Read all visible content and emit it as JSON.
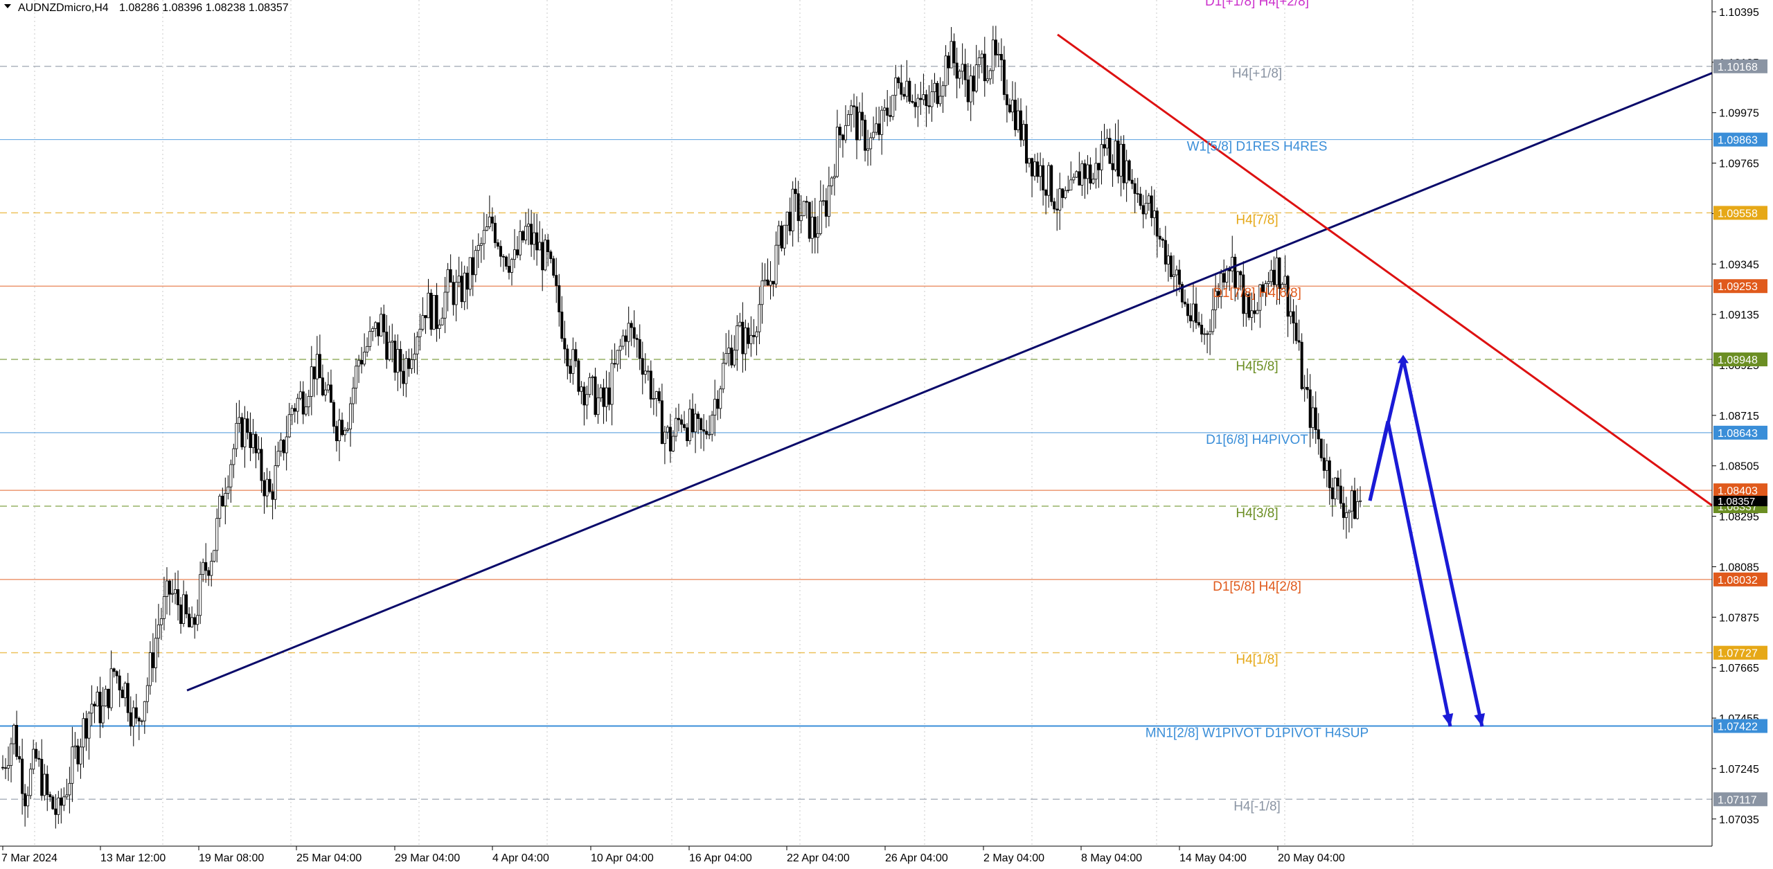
{
  "header": {
    "symbol_timeframe": "AUDNZDmicro,H4",
    "ohlc": "1.08286 1.08396 1.08238 1.08357"
  },
  "colors": {
    "background": "#ffffff",
    "candle": "#000000",
    "grid": "#c8c8c8",
    "trendline_up": "#0a0a6a",
    "trendline_down": "#dd1111",
    "arrows": "#1a1ad6",
    "price_tag_current": "#000000"
  },
  "chart_data": {
    "type": "candlestick",
    "title": "AUDNZDmicro,H4",
    "ylim": [
      1.069,
      1.1042
    ],
    "y_ticks": [
      "1.10395",
      "1.10185",
      "1.09975",
      "1.09765",
      "1.09555",
      "1.09345",
      "1.09135",
      "1.08925",
      "1.08715",
      "1.08505",
      "1.08295",
      "1.08085",
      "1.07875",
      "1.07665",
      "1.07455",
      "1.07245",
      "1.07035"
    ],
    "x_ticks": [
      "7 Mar 2024",
      "13 Mar 12:00",
      "19 Mar 08:00",
      "25 Mar 04:00",
      "29 Mar 04:00",
      "4 Apr 04:00",
      "10 Apr 04:00",
      "16 Apr 04:00",
      "22 Apr 04:00",
      "26 Apr 04:00",
      "2 May 04:00",
      "8 May 04:00",
      "14 May 04:00",
      "20 May 04:00"
    ],
    "current_price": "1.08357",
    "price_path": [
      1.0725,
      1.074,
      1.0715,
      1.0728,
      1.0712,
      1.0705,
      1.0722,
      1.0738,
      1.0752,
      1.0748,
      1.0765,
      1.0758,
      1.0742,
      1.076,
      1.0785,
      1.0798,
      1.0792,
      1.078,
      1.0805,
      1.0818,
      1.0845,
      1.0862,
      1.0868,
      1.085,
      1.0838,
      1.0855,
      1.0875,
      1.088,
      1.0892,
      1.088,
      1.0868,
      1.0872,
      1.0895,
      1.0902,
      1.091,
      1.0895,
      1.089,
      1.0905,
      1.0918,
      1.0912,
      1.0925,
      1.0922,
      1.093,
      1.0942,
      1.0952,
      1.094,
      1.0935,
      1.0948,
      1.0942,
      1.0935,
      1.0915,
      1.0895,
      1.0885,
      1.088,
      1.0875,
      1.089,
      1.0908,
      1.0902,
      1.0888,
      1.087,
      1.086,
      1.0872,
      1.0865,
      1.0862,
      1.0878,
      1.0895,
      1.0905,
      1.0902,
      1.0918,
      1.0928,
      1.0948,
      1.0958,
      1.0955,
      1.0948,
      1.096,
      1.0985,
      1.1,
      1.099,
      1.0985,
      1.0992,
      1.1005,
      1.1012,
      1.1005,
      1.0998,
      1.1008,
      1.1022,
      1.1015,
      1.1008,
      1.1018,
      1.102,
      1.101,
      1.0998,
      1.0982,
      1.0975,
      1.0968,
      1.0958,
      1.0962,
      1.0975,
      1.097,
      1.0985,
      1.098,
      1.0975,
      1.0965,
      1.0958,
      1.0945,
      1.0935,
      1.092,
      1.091,
      1.0905,
      1.092,
      1.0938,
      1.093,
      1.091,
      1.0918,
      1.0935,
      1.093,
      1.091,
      1.088,
      1.0865,
      1.085,
      1.0838,
      1.0832,
      1.0836
    ],
    "levels": [
      {
        "label": "D1[+1/8] H4[+2/8]",
        "value": 1.1045,
        "show_tag": false,
        "color": "#cc33cc",
        "style": "none"
      },
      {
        "label": "H4[+1/8]",
        "value": 1.10168,
        "tag": "1.10168",
        "show_tag": true,
        "color": "#8a94a3",
        "style": "dash"
      },
      {
        "label": "W1[5/8] D1RES H4RES",
        "value": 1.09863,
        "tag": "1.09863",
        "show_tag": true,
        "color": "#3a8ed8",
        "style": "solid"
      },
      {
        "label": "H4[7/8]",
        "value": 1.09558,
        "tag": "1.09558",
        "show_tag": true,
        "color": "#e6a817",
        "style": "dash"
      },
      {
        "label": "D1[7/8] H4[6/8]",
        "value": 1.09253,
        "tag": "1.09253",
        "show_tag": true,
        "color": "#e05a1c",
        "style": "solid"
      },
      {
        "label": "H4[5/8]",
        "value": 1.08948,
        "tag": "1.08948",
        "show_tag": true,
        "color": "#6b8e23",
        "style": "dash"
      },
      {
        "label": "D1[6/8] H4PIVOT",
        "value": 1.08643,
        "tag": "1.08643",
        "show_tag": true,
        "color": "#3a8ed8",
        "style": "solid"
      },
      {
        "label": "",
        "value": 1.08403,
        "tag": "1.08403",
        "show_tag": true,
        "color": "#e05a1c",
        "style": "solid"
      },
      {
        "label": "H4[3/8]",
        "value": 1.08337,
        "tag": "1.08337",
        "show_tag": true,
        "color": "#6b8e23",
        "style": "dash"
      },
      {
        "label": "D1[5/8] H4[2/8]",
        "value": 1.08032,
        "tag": "1.08032",
        "show_tag": true,
        "color": "#e05a1c",
        "style": "solid"
      },
      {
        "label": "H4[1/8]",
        "value": 1.07727,
        "tag": "1.07727",
        "show_tag": true,
        "color": "#e6a817",
        "style": "dash"
      },
      {
        "label": "MN1[2/8] W1PIVOT D1PIVOT H4SUP",
        "value": 1.07422,
        "tag": "1.07422",
        "show_tag": true,
        "color": "#3a8ed8",
        "style": "solid"
      },
      {
        "label": "H4[-1/8]",
        "value": 1.07117,
        "tag": "1.07117",
        "show_tag": true,
        "color": "#8a94a3",
        "style": "dash"
      }
    ],
    "trendlines": [
      {
        "name": "support",
        "from": {
          "x": "18 Mar 2024",
          "y": 1.0757
        },
        "to": {
          "x": "end",
          "y": 1.1014
        },
        "color": "#0a0a6a"
      },
      {
        "name": "resistance",
        "from": {
          "x": "3 May 2024",
          "y": 1.103
        },
        "to": {
          "x": "end",
          "y": 1.0834
        },
        "color": "#dd1111"
      }
    ],
    "projection_arrows": [
      {
        "points": [
          1.0836,
          1.0869,
          1.0742
        ],
        "color": "#1a1ad6"
      },
      {
        "points": [
          1.0836,
          1.0895,
          1.0742
        ],
        "color": "#1a1ad6"
      }
    ],
    "grid": true
  }
}
